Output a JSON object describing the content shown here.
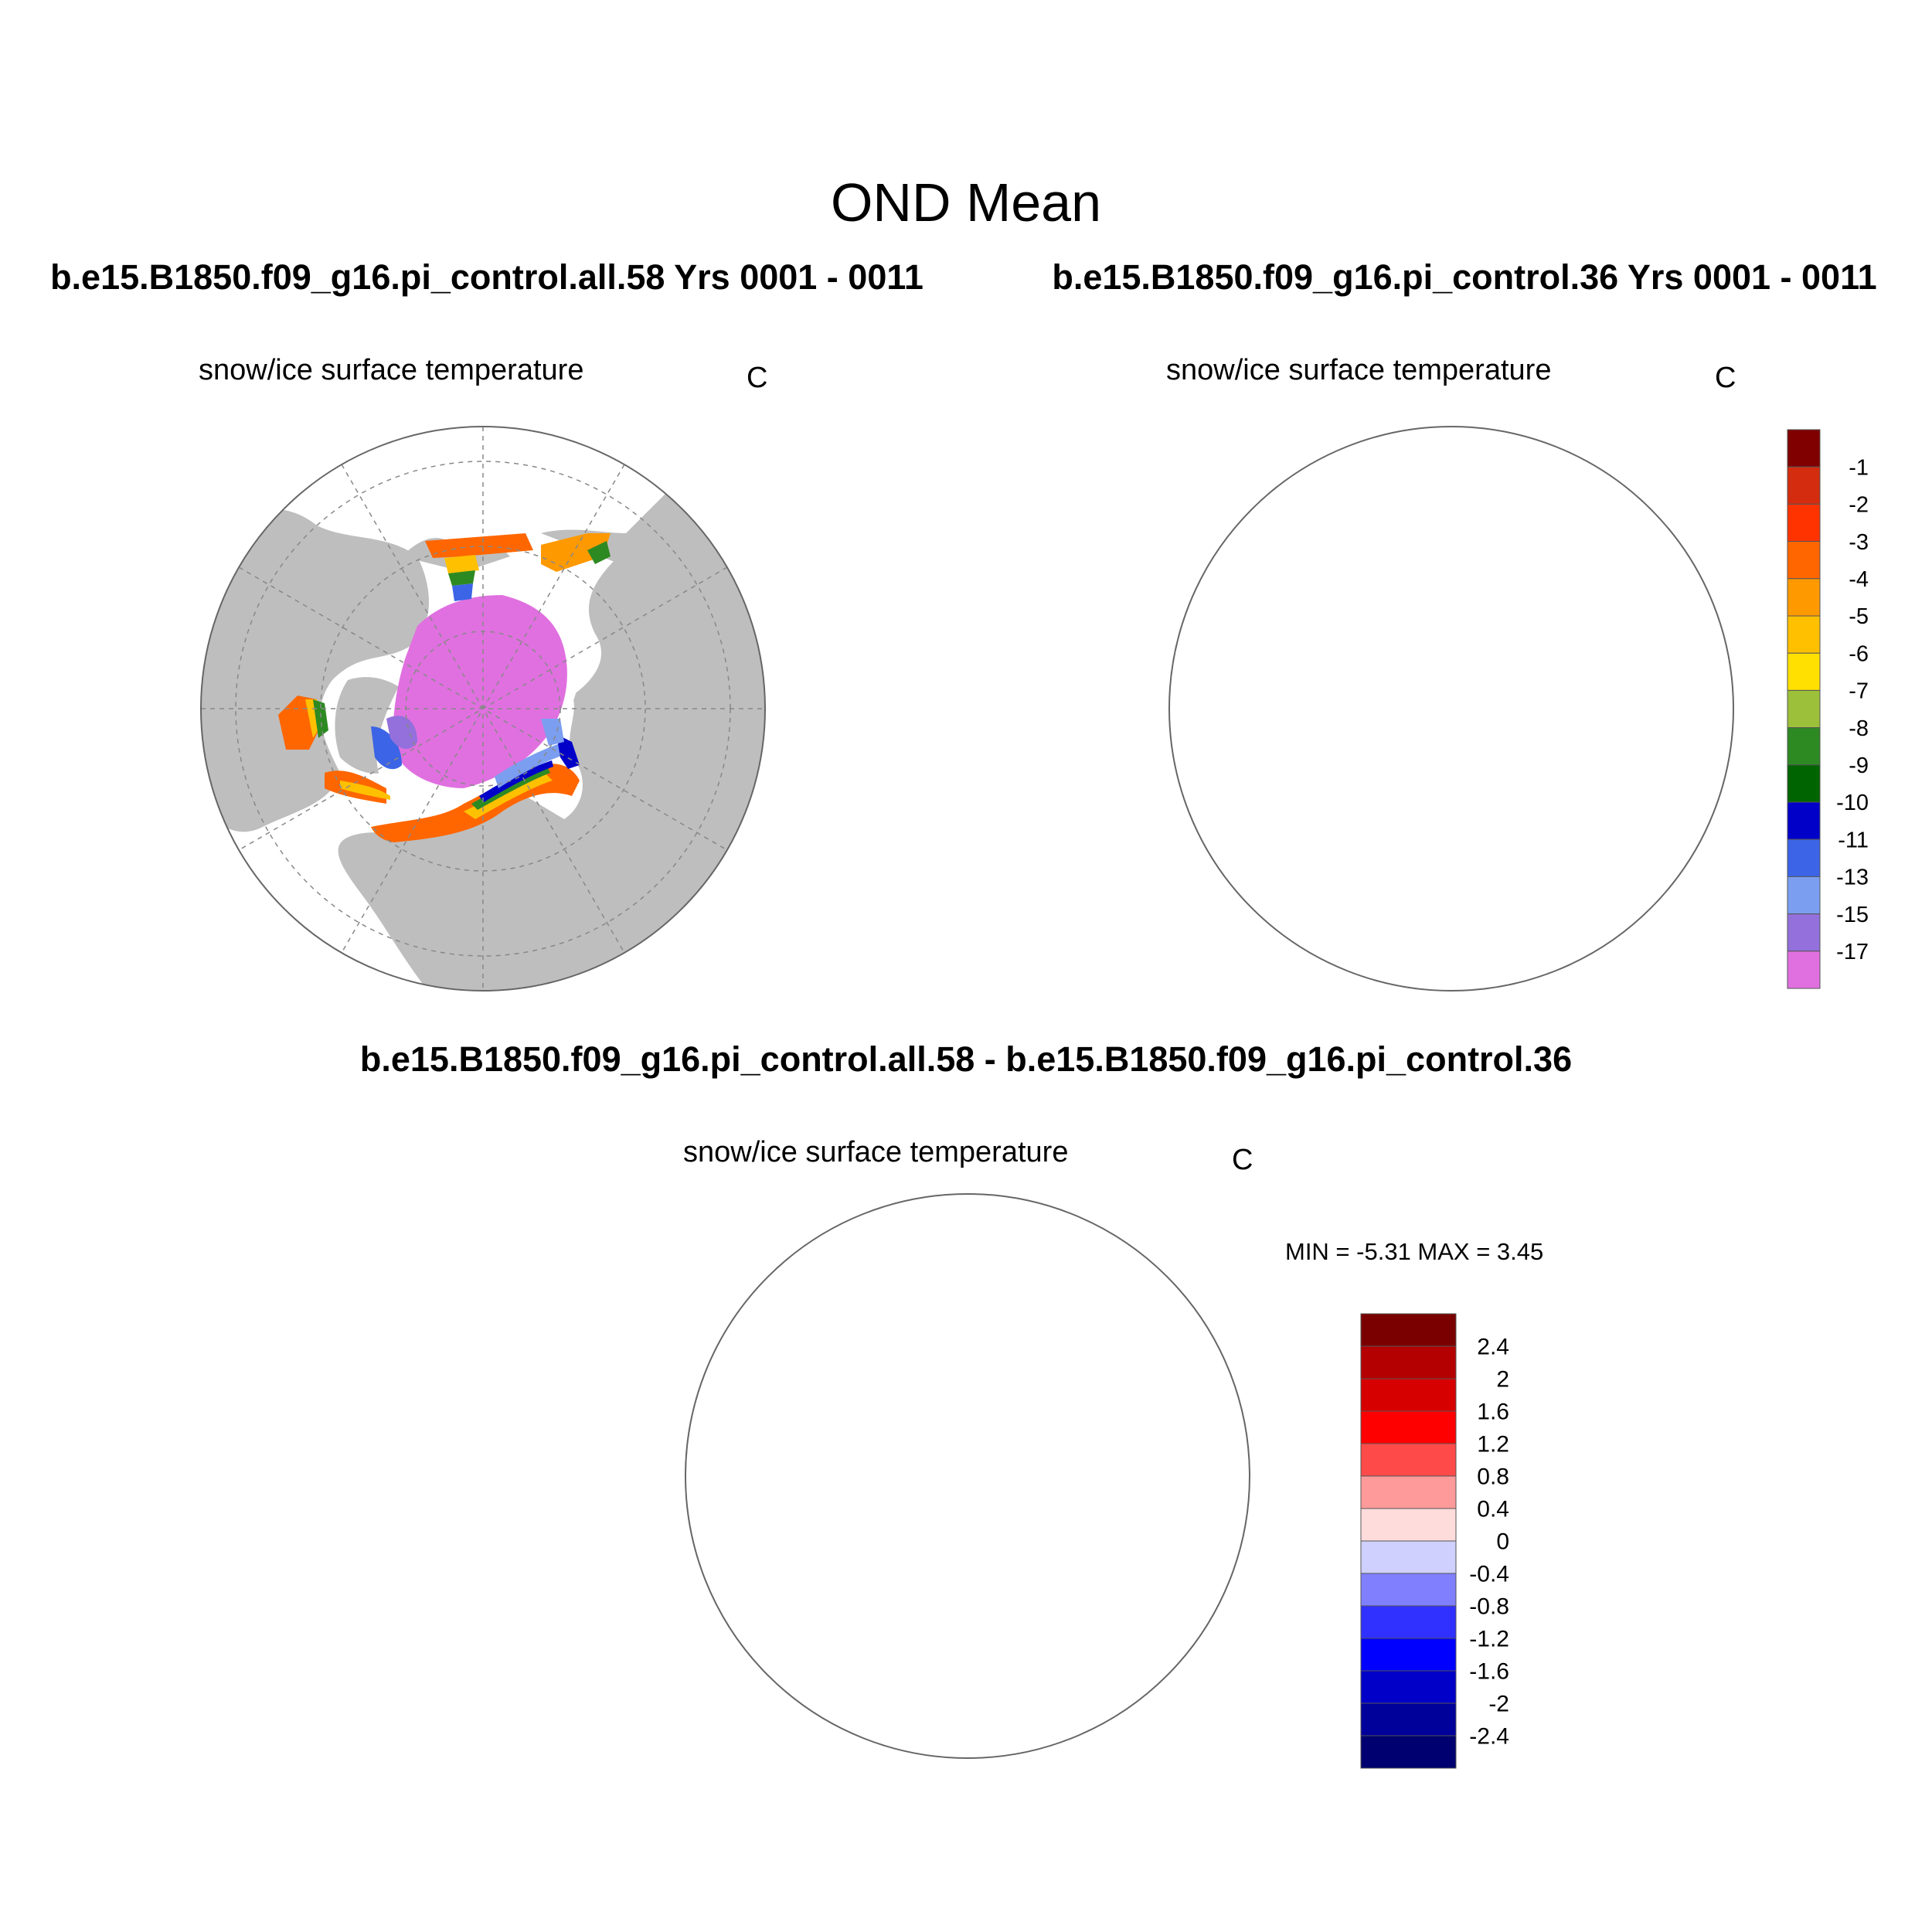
{
  "main_title": "OND Mean",
  "panels": [
    {
      "case_title": "b.e15.B1850.f09_g16.pi_control.all.58  Yrs 0001 - 0011",
      "variable": "snow/ice surface temperature",
      "units": "C"
    },
    {
      "case_title": "b.e15.B1850.f09_g16.pi_control.36  Yrs 0001 - 0011",
      "variable": "snow/ice surface temperature",
      "units": "C"
    },
    {
      "case_title": "b.e15.B1850.f09_g16.pi_control.all.58 - b.e15.B1850.f09_g16.pi_control.36",
      "variable": "snow/ice surface temperature",
      "units": "C",
      "min_max": "MIN =  -5.31 MAX =   3.45"
    }
  ],
  "colorbar_abs": {
    "labels": [
      "-1",
      "-2",
      "-3",
      "-4",
      "-5",
      "-6",
      "-7",
      "-8",
      "-9",
      "-10",
      "-11",
      "-13",
      "-15",
      "-17"
    ],
    "colors": [
      "#800000",
      "#d42c0f",
      "#ff3300",
      "#ff6600",
      "#ff9900",
      "#ffc000",
      "#ffe000",
      "#9cc03a",
      "#2d8a22",
      "#006400",
      "#0000c8",
      "#3c64e6",
      "#7b9ef0",
      "#9370db",
      "#e070e0"
    ]
  },
  "colorbar_diff": {
    "labels": [
      "2.4",
      "2",
      "1.6",
      "1.2",
      "0.8",
      "0.4",
      "0",
      "-0.4",
      "-0.8",
      "-1.2",
      "-1.6",
      "-2",
      "-2.4"
    ],
    "colors": [
      "#7a0000",
      "#b40000",
      "#d70000",
      "#ff0000",
      "#ff4a4a",
      "#ff9a9a",
      "#ffdcdc",
      "#d0d0ff",
      "#8080ff",
      "#3030ff",
      "#0000ff",
      "#0000c8",
      "#00009b",
      "#000070"
    ]
  },
  "colors": {
    "land": "#bebebe",
    "ocean": "#ffffff",
    "grid": "#888888",
    "coast": "#777777"
  }
}
